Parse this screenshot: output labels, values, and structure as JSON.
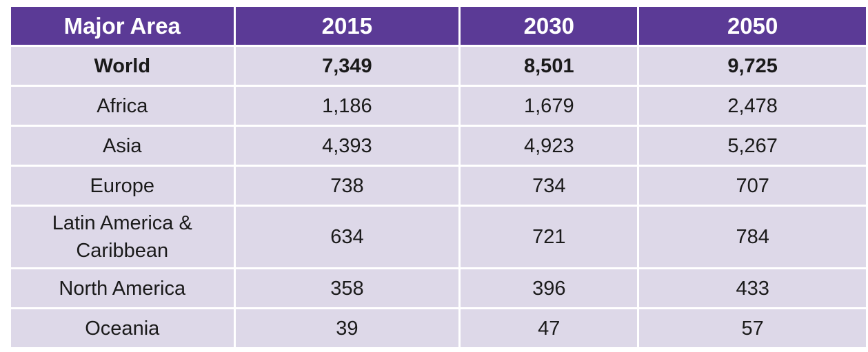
{
  "colors": {
    "page_bg": "#FFFFFF",
    "header_bg": "#5B3A96",
    "header_text": "#FFFFFF",
    "row_bg": "#DDD8E8",
    "body_text": "#1A1A1A",
    "separator": "#FFFFFF"
  },
  "table": {
    "headers": [
      "Major Area",
      "2015",
      "2030",
      "2050"
    ],
    "rows": [
      {
        "area": "World",
        "values": [
          "7,349",
          "8,501",
          "9,725"
        ],
        "bold": true
      },
      {
        "area": "Africa",
        "values": [
          "1,186",
          "1,679",
          "2,478"
        ],
        "bold": false
      },
      {
        "area": "Asia",
        "values": [
          "4,393",
          "4,923",
          "5,267"
        ],
        "bold": false
      },
      {
        "area": "Europe",
        "values": [
          "738",
          "734",
          "707"
        ],
        "bold": false
      },
      {
        "area": "Latin America & Caribbean",
        "values": [
          "634",
          "721",
          "784"
        ],
        "bold": false
      },
      {
        "area": "North America",
        "values": [
          "358",
          "396",
          "433"
        ],
        "bold": false
      },
      {
        "area": "Oceania",
        "values": [
          "39",
          "47",
          "57"
        ],
        "bold": false
      }
    ]
  },
  "chart_data": {
    "type": "table",
    "columns": [
      "Major Area",
      "2015",
      "2030",
      "2050"
    ],
    "rows": [
      {
        "major_area": "World",
        "y2015": 7349,
        "y2030": 8501,
        "y2050": 9725
      },
      {
        "major_area": "Africa",
        "y2015": 1186,
        "y2030": 1679,
        "y2050": 2478
      },
      {
        "major_area": "Asia",
        "y2015": 4393,
        "y2030": 4923,
        "y2050": 5267
      },
      {
        "major_area": "Europe",
        "y2015": 738,
        "y2030": 734,
        "y2050": 707
      },
      {
        "major_area": "Latin America & Caribbean",
        "y2015": 634,
        "y2030": 721,
        "y2050": 784
      },
      {
        "major_area": "North America",
        "y2015": 358,
        "y2030": 396,
        "y2050": 433
      },
      {
        "major_area": "Oceania",
        "y2015": 39,
        "y2030": 47,
        "y2050": 57
      }
    ]
  }
}
